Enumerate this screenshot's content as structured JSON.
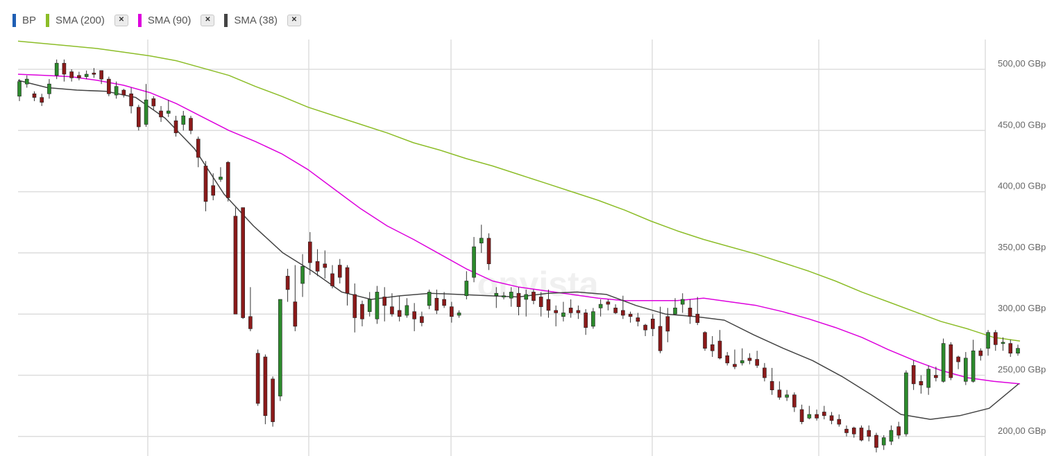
{
  "legend": {
    "items": [
      {
        "label": "BP",
        "color": "#1f5fb4",
        "closable": false
      },
      {
        "label": "SMA (200)",
        "color": "#8cbd28",
        "closable": true
      },
      {
        "label": "SMA (90)",
        "color": "#dd00dd",
        "closable": true
      },
      {
        "label": "SMA (38)",
        "color": "#444444",
        "closable": true
      }
    ],
    "close_glyph": "✕"
  },
  "watermark": "onvista",
  "colors": {
    "up": "#2c8a2c",
    "down": "#8b1a1a",
    "wick": "#333333",
    "grid": "#dddddd",
    "axis_text": "#666666"
  },
  "chart_data": {
    "type": "line",
    "subtype": "candlestick",
    "title": "",
    "xlabel": "",
    "ylabel": "",
    "ylim": [
      180,
      530
    ],
    "y_ticks": [
      200,
      250,
      300,
      350,
      400,
      450,
      500
    ],
    "y_tick_labels": [
      "200,00 GBp",
      "250,00 GBp",
      "300,00 GBp",
      "350,00 GBp",
      "400,00 GBp",
      "450,00 GBp",
      "500,00 GBp"
    ],
    "y_axis_side": "right",
    "grid": true,
    "legend_position": "top-left",
    "series": [
      {
        "name": "SMA (200)",
        "color": "#8cbd28",
        "values": [
          523,
          521,
          519,
          517,
          514,
          511,
          507,
          501,
          495,
          486,
          478,
          469,
          462,
          455,
          448,
          440,
          434,
          427,
          421,
          414,
          407,
          400,
          393,
          385,
          376,
          368,
          361,
          355,
          349,
          342,
          335,
          327,
          318,
          310,
          302,
          294,
          288,
          281,
          278
        ]
      },
      {
        "name": "SMA (90)",
        "color": "#dd00dd",
        "values": [
          496,
          495,
          494,
          491,
          487,
          481,
          472,
          461,
          450,
          441,
          431,
          418,
          402,
          386,
          372,
          361,
          349,
          337,
          327,
          322,
          319,
          316,
          313,
          311,
          311,
          311,
          313,
          310,
          307,
          302,
          296,
          289,
          281,
          271,
          262,
          254,
          248,
          245,
          243
        ]
      },
      {
        "name": "SMA (38)",
        "color": "#444444",
        "values": [
          491,
          485,
          483,
          482,
          477,
          460,
          435,
          398,
          372,
          350,
          335,
          318,
          312,
          315,
          317,
          316,
          315,
          314,
          317,
          318,
          316,
          307,
          300,
          298,
          295,
          283,
          272,
          262,
          249,
          234,
          218,
          214,
          217,
          223,
          243
        ]
      }
    ],
    "candles": [
      [
        478,
        490,
        474,
        492
      ],
      [
        488,
        492,
        485,
        495
      ],
      [
        480,
        477,
        474,
        482
      ],
      [
        477,
        473,
        470,
        480
      ],
      [
        480,
        488,
        476,
        492
      ],
      [
        495,
        505,
        492,
        508
      ],
      [
        505,
        496,
        490,
        508
      ],
      [
        498,
        493,
        490,
        500
      ],
      [
        495,
        493,
        491,
        498
      ],
      [
        494,
        496,
        492,
        499
      ],
      [
        497,
        496,
        493,
        501
      ],
      [
        499,
        492,
        488,
        499
      ],
      [
        492,
        480,
        478,
        494
      ],
      [
        479,
        486,
        476,
        490
      ],
      [
        483,
        479,
        477,
        484
      ],
      [
        480,
        470,
        464,
        485
      ],
      [
        469,
        453,
        450,
        471
      ],
      [
        455,
        475,
        453,
        488
      ],
      [
        476,
        470,
        467,
        478
      ],
      [
        466,
        461,
        457,
        470
      ],
      [
        464,
        466,
        461,
        475
      ],
      [
        458,
        448,
        445,
        462
      ],
      [
        455,
        462,
        450,
        466
      ],
      [
        460,
        450,
        447,
        462
      ],
      [
        443,
        428,
        420,
        445
      ],
      [
        421,
        392,
        384,
        425
      ],
      [
        405,
        397,
        393,
        415
      ],
      [
        410,
        412,
        408,
        420
      ],
      [
        424,
        395,
        392,
        425
      ],
      [
        380,
        300,
        300,
        387
      ],
      [
        387,
        297,
        296,
        387
      ],
      [
        298,
        288,
        286,
        322
      ],
      [
        268,
        227,
        225,
        271
      ],
      [
        265,
        217,
        210,
        267
      ],
      [
        247,
        212,
        208,
        249
      ],
      [
        233,
        312,
        229,
        312
      ],
      [
        331,
        320,
        310,
        337
      ],
      [
        310,
        290,
        286,
        340
      ],
      [
        325,
        339,
        314,
        349
      ],
      [
        359,
        342,
        332,
        367
      ],
      [
        343,
        335,
        331,
        353
      ],
      [
        341,
        338,
        329,
        352
      ],
      [
        333,
        323,
        321,
        340
      ],
      [
        340,
        330,
        325,
        345
      ],
      [
        338,
        317,
        307,
        340
      ],
      [
        316,
        297,
        285,
        325
      ],
      [
        308,
        296,
        290,
        311
      ],
      [
        302,
        312,
        298,
        318
      ],
      [
        296,
        318,
        292,
        323
      ],
      [
        314,
        307,
        294,
        322
      ],
      [
        306,
        300,
        298,
        317
      ],
      [
        303,
        298,
        294,
        315
      ],
      [
        299,
        307,
        297,
        313
      ],
      [
        302,
        296,
        286,
        309
      ],
      [
        298,
        293,
        290,
        302
      ],
      [
        307,
        318,
        304,
        320
      ],
      [
        313,
        303,
        300,
        320
      ],
      [
        312,
        307,
        305,
        318
      ],
      [
        306,
        298,
        293,
        310
      ],
      [
        299,
        301,
        297,
        303
      ],
      [
        315,
        327,
        312,
        335
      ],
      [
        330,
        355,
        326,
        363
      ],
      [
        358,
        362,
        350,
        373
      ],
      [
        362,
        341,
        336,
        366
      ],
      [
        315,
        317,
        305,
        322
      ],
      [
        314,
        315,
        312,
        318
      ],
      [
        313,
        318,
        306,
        322
      ],
      [
        317,
        306,
        299,
        322
      ],
      [
        312,
        316,
        298,
        320
      ],
      [
        318,
        311,
        308,
        320
      ],
      [
        314,
        306,
        298,
        318
      ],
      [
        312,
        303,
        297,
        320
      ],
      [
        303,
        301,
        290,
        307
      ],
      [
        298,
        301,
        294,
        310
      ],
      [
        305,
        301,
        297,
        312
      ],
      [
        303,
        301,
        296,
        307
      ],
      [
        301,
        289,
        283,
        304
      ],
      [
        290,
        302,
        288,
        305
      ],
      [
        305,
        308,
        298,
        312
      ],
      [
        310,
        308,
        303,
        312
      ],
      [
        305,
        301,
        300,
        308
      ],
      [
        303,
        299,
        296,
        315
      ],
      [
        300,
        298,
        293,
        302
      ],
      [
        297,
        294,
        290,
        301
      ],
      [
        291,
        287,
        282,
        292
      ],
      [
        296,
        288,
        282,
        300
      ],
      [
        290,
        270,
        268,
        306
      ],
      [
        298,
        286,
        277,
        305
      ],
      [
        300,
        305,
        299,
        313
      ],
      [
        308,
        312,
        301,
        317
      ],
      [
        305,
        298,
        292,
        312
      ],
      [
        300,
        293,
        291,
        314
      ],
      [
        285,
        272,
        270,
        286
      ],
      [
        275,
        270,
        265,
        282
      ],
      [
        278,
        264,
        263,
        287
      ],
      [
        266,
        260,
        258,
        269
      ],
      [
        259,
        257,
        255,
        271
      ],
      [
        260,
        262,
        258,
        272
      ],
      [
        264,
        262,
        259,
        268
      ],
      [
        263,
        258,
        256,
        270
      ],
      [
        256,
        248,
        245,
        260
      ],
      [
        245,
        238,
        234,
        256
      ],
      [
        238,
        232,
        230,
        245
      ],
      [
        232,
        234,
        229,
        238
      ],
      [
        234,
        224,
        220,
        236
      ],
      [
        222,
        212,
        210,
        226
      ],
      [
        215,
        218,
        214,
        225
      ],
      [
        218,
        215,
        213,
        222
      ],
      [
        220,
        217,
        214,
        225
      ],
      [
        217,
        213,
        210,
        220
      ],
      [
        214,
        210,
        208,
        218
      ],
      [
        206,
        203,
        200,
        209
      ],
      [
        207,
        202,
        199,
        208
      ],
      [
        207,
        197,
        196,
        209
      ],
      [
        205,
        200,
        196,
        209
      ],
      [
        201,
        191,
        187,
        203
      ],
      [
        193,
        199,
        189,
        201
      ],
      [
        196,
        205,
        193,
        209
      ],
      [
        208,
        201,
        198,
        212
      ],
      [
        202,
        252,
        200,
        254
      ],
      [
        258,
        243,
        238,
        262
      ],
      [
        245,
        242,
        235,
        250
      ],
      [
        240,
        255,
        234,
        258
      ],
      [
        250,
        248,
        245,
        257
      ],
      [
        245,
        276,
        244,
        280
      ],
      [
        275,
        248,
        246,
        277
      ],
      [
        265,
        261,
        255,
        266
      ],
      [
        245,
        264,
        242,
        269
      ],
      [
        245,
        270,
        244,
        279
      ],
      [
        270,
        266,
        262,
        272
      ],
      [
        272,
        285,
        266,
        287
      ],
      [
        285,
        275,
        270,
        287
      ],
      [
        277,
        277,
        270,
        281
      ],
      [
        276,
        268,
        265,
        279
      ],
      [
        268,
        272,
        266,
        275
      ]
    ]
  }
}
